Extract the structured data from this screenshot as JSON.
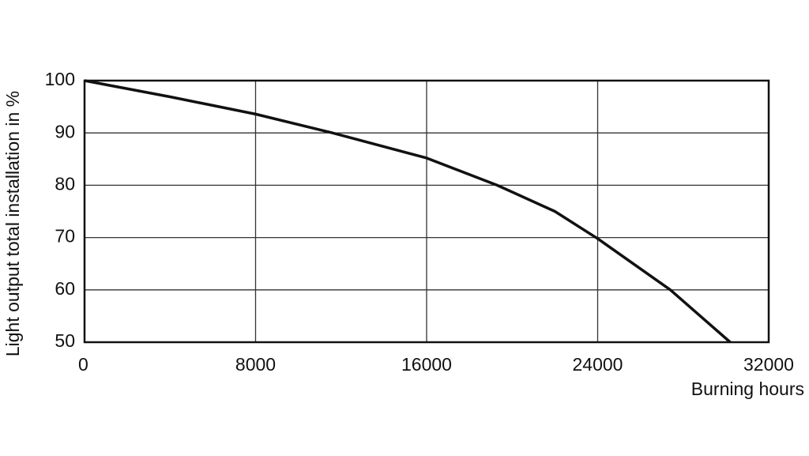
{
  "chart_data": {
    "type": "line",
    "y_label": "Light output total installation in %",
    "x_label": "Burning hours",
    "x": [
      0,
      4000,
      8000,
      11600,
      16000,
      19300,
      22000,
      24000,
      27400,
      30200
    ],
    "series": [
      {
        "color": "#111111",
        "values": [
          100,
          96.9,
          93.6,
          90,
          85.2,
          80,
          75,
          69.8,
          60,
          50
        ]
      }
    ],
    "xlim": [
      0,
      32000
    ],
    "xticks": [
      0,
      8000,
      16000,
      24000,
      32000
    ],
    "ylim": [
      50,
      100
    ],
    "yticks": [
      50,
      60,
      70,
      80,
      90,
      100
    ],
    "grid": true
  }
}
